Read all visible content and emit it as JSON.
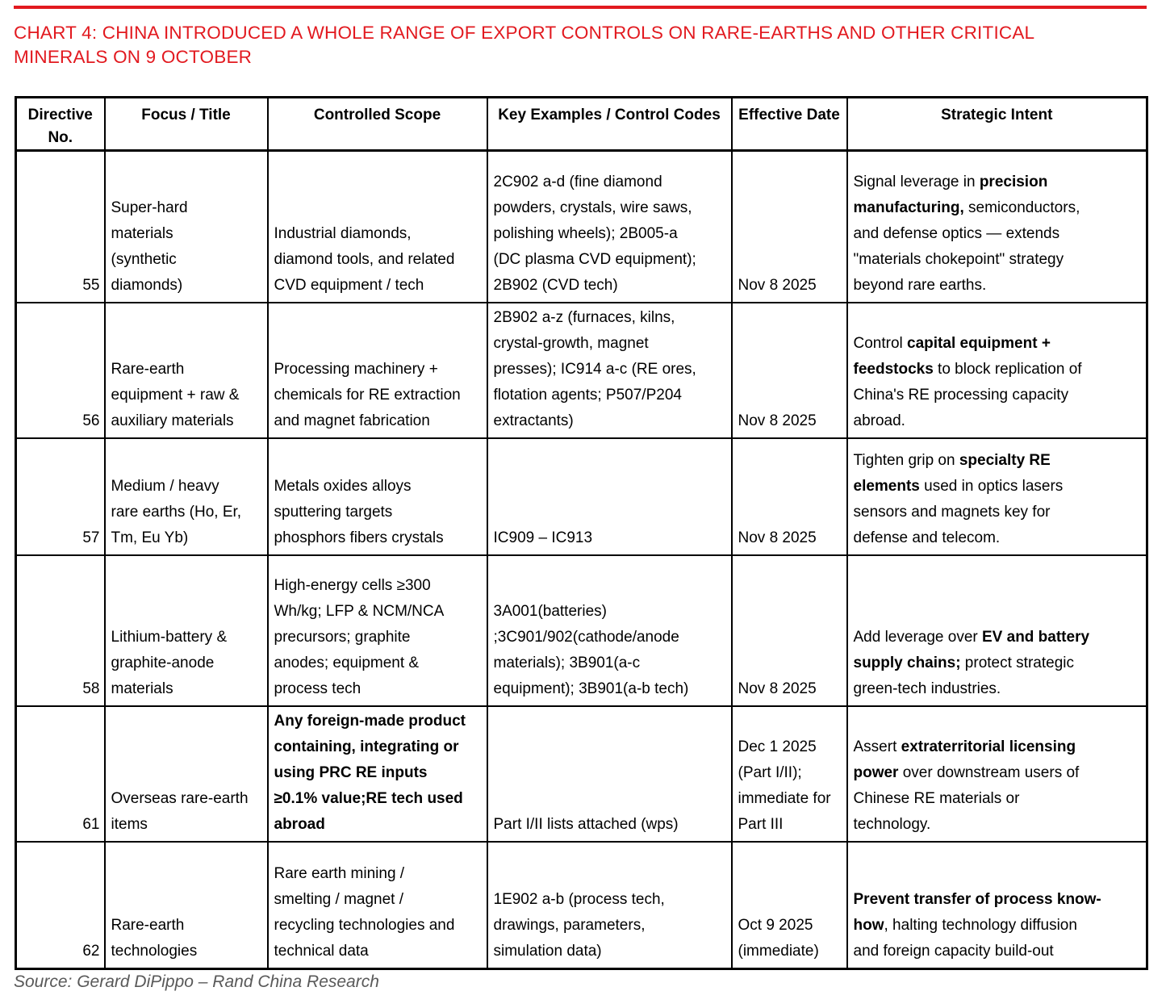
{
  "title": "CHART 4: CHINA INTRODUCED A WHOLE RANGE OF EXPORT CONTROLS ON RARE-EARTHS AND OTHER CRITICAL\nMINERALS ON 9 OCTOBER",
  "source": "Source: Gerard DiPippo – Rand China Research",
  "colors": {
    "accent_red": "#e2191f",
    "table_border": "#000000",
    "source_text": "#595959"
  },
  "table": {
    "headers": [
      "Directive\nNo.",
      "Focus / Title",
      "Controlled Scope",
      "Key Examples / Control Codes",
      "Effective Date",
      "Strategic Intent"
    ],
    "rows": [
      {
        "directive": "55",
        "focus": "Super-hard\nmaterials\n(synthetic\ndiamonds)",
        "scope": [
          {
            "t": "Industrial diamonds,\ndiamond tools, and related\nCVD equipment / tech",
            "b": false
          }
        ],
        "examples": "2C902 a-d (fine diamond\npowders, crystals, wire saws,\npolishing wheels); 2B005-a\n(DC plasma CVD equipment);\n2B902 (CVD tech)",
        "date": "Nov 8 2025",
        "intent": [
          {
            "t": "Signal leverage in ",
            "b": false
          },
          {
            "t": "precision\nmanufacturing,",
            "b": true
          },
          {
            "t": " semiconductors,\nand defense optics — extends\n\"materials chokepoint\" strategy\nbeyond rare earths.",
            "b": false
          }
        ]
      },
      {
        "directive": "56",
        "focus": "Rare-earth\nequipment + raw &\nauxiliary materials",
        "scope": [
          {
            "t": "Processing machinery +\nchemicals for RE extraction\nand magnet fabrication",
            "b": false
          }
        ],
        "examples": "2B902 a-z (furnaces, kilns,\ncrystal-growth, magnet\npresses); IC914 a-c (RE ores,\nflotation agents; P507/P204\nextractants)",
        "date": "Nov 8 2025",
        "intent": [
          {
            "t": "Control ",
            "b": false
          },
          {
            "t": "capital equipment +\nfeedstocks",
            "b": true
          },
          {
            "t": " to block replication of\nChina's RE processing capacity\nabroad.",
            "b": false
          }
        ]
      },
      {
        "directive": "57",
        "focus": "Medium / heavy\nrare earths (Ho, Er,\nTm, Eu Yb)",
        "scope": [
          {
            "t": "Metals oxides alloys\nsputtering targets\nphosphors fibers crystals",
            "b": false
          }
        ],
        "examples": "IC909 – IC913",
        "date": "Nov 8 2025",
        "intent": [
          {
            "t": "Tighten grip on ",
            "b": false
          },
          {
            "t": "specialty RE\nelements",
            "b": true
          },
          {
            "t": " used in optics lasers\nsensors and magnets key for\ndefense and telecom.",
            "b": false
          }
        ]
      },
      {
        "directive": "58",
        "focus": "Lithium-battery &\ngraphite-anode\nmaterials",
        "scope": [
          {
            "t": "High-energy cells ≥300\nWh/kg; LFP & NCM/NCA\nprecursors; graphite\nanodes; equipment &\nprocess tech",
            "b": false
          }
        ],
        "examples": "3A001(batteries)\n;3C901/902(cathode/anode\nmaterials); 3B901(a-c\nequipment); 3B901(a-b tech)",
        "date": "Nov 8 2025",
        "intent": [
          {
            "t": "Add leverage over ",
            "b": false
          },
          {
            "t": "EV and battery\nsupply chains;",
            "b": true
          },
          {
            "t": " protect strategic\ngreen-tech industries.",
            "b": false
          }
        ]
      },
      {
        "directive": "61",
        "focus": "Overseas rare-earth\nitems",
        "scope": [
          {
            "t": "Any foreign-made product\ncontaining, integrating or\nusing PRC RE inputs\n≥0.1% value;RE tech used\nabroad",
            "b": true
          }
        ],
        "examples": "Part I/II lists attached (wps)",
        "date": "Dec 1 2025\n(Part I/II);\nimmediate for\nPart III",
        "intent": [
          {
            "t": "Assert ",
            "b": false
          },
          {
            "t": "extraterritorial licensing\npower",
            "b": true
          },
          {
            "t": " over downstream users of\nChinese RE materials or\ntechnology.",
            "b": false
          }
        ]
      },
      {
        "directive": "62",
        "focus": "Rare-earth\ntechnologies",
        "scope": [
          {
            "t": "Rare earth mining /\nsmelting / magnet /\nrecycling technologies and\ntechnical data",
            "b": false
          }
        ],
        "examples": "1E902 a-b (process tech,\ndrawings, parameters,\nsimulation data)",
        "date": "Oct 9 2025\n(immediate)",
        "intent": [
          {
            "t": "Prevent transfer of process know-\nhow",
            "b": true
          },
          {
            "t": ", halting technology diffusion\nand foreign capacity build-out",
            "b": false
          }
        ]
      }
    ]
  }
}
